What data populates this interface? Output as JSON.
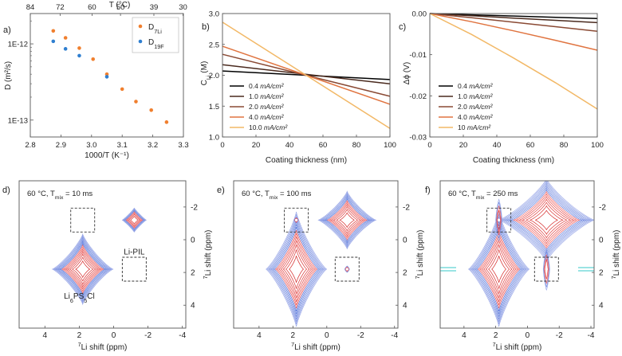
{
  "colors": {
    "li": "#f07f2e",
    "f": "#2f7fd0",
    "nmr_red": "#d11f1f",
    "nmr_blue": "#4e6fd8",
    "nmr_cyan": "#36c9c9",
    "box": "#333333"
  },
  "chart_data": [
    {
      "id": "a",
      "type": "scatter",
      "panel_label": "a)",
      "xlabel": "1000/T (K⁻¹)",
      "ylabel": "D (m²/s)",
      "top_xlabel": "T (°C)",
      "xlim": [
        2.8,
        3.3
      ],
      "ylim": [
        6e-14,
        2.5e-12
      ],
      "yscale": "log",
      "xticks": [
        2.8,
        2.9,
        3.0,
        3.1,
        3.2,
        3.3
      ],
      "xtick_labels": [
        "2.8",
        "2.9",
        "3.0",
        "3.1",
        "3.2",
        "3.3"
      ],
      "yticks": [
        1e-12,
        1e-13
      ],
      "ytick_labels": [
        "1E-12",
        "1E-13"
      ],
      "top_ticks": [
        84,
        72,
        60,
        50,
        39,
        30
      ],
      "top_tick_labels": [
        "84",
        "72",
        "60",
        "50",
        "39",
        "30"
      ],
      "legend_position": "top-right",
      "series": [
        {
          "name": "D7Li",
          "name_main": "D",
          "name_sub": "7Li",
          "color": "#f07f2e",
          "x": [
            2.875,
            2.915,
            2.96,
            3.005,
            3.05,
            3.1,
            3.145,
            3.195,
            3.245
          ],
          "y": [
            1.48e-12,
            1.2e-12,
            8.8e-13,
            6.3e-13,
            4e-13,
            2.55e-13,
            1.75e-13,
            1.35e-13,
            9.4e-14
          ]
        },
        {
          "name": "D19F",
          "name_main": "D",
          "name_sub": "19F",
          "color": "#2f7fd0",
          "x": [
            2.875,
            2.915,
            2.96,
            3.05
          ],
          "y": [
            1.08e-12,
            8.6e-13,
            7e-13,
            3.7e-13
          ]
        }
      ]
    },
    {
      "id": "b",
      "type": "line",
      "panel_label": "b)",
      "xlabel": "Coating thickness (nm)",
      "ylabel_main": "C",
      "ylabel_sub": "Li",
      "ylabel_unit": " (M)",
      "xlim": [
        0,
        100
      ],
      "ylim": [
        1.0,
        3.0
      ],
      "xticks": [
        0,
        20,
        40,
        60,
        80,
        100
      ],
      "yticks": [
        1.0,
        1.5,
        2.0,
        2.5,
        3.0
      ],
      "ytick_labels": [
        "1.0",
        "1.5",
        "2.0",
        "2.5",
        "3.0"
      ],
      "legend_position": "bottom-left",
      "series": [
        {
          "name": "0.4 mA/cm²",
          "color": "#000000",
          "x": [
            0,
            100
          ],
          "y": [
            2.07,
            1.93
          ]
        },
        {
          "name": "1.0 mA/cm²",
          "color": "#4a2a1e",
          "x": [
            0,
            100
          ],
          "y": [
            2.17,
            1.86
          ]
        },
        {
          "name": "2.0 mA/cm²",
          "color": "#8a4a34",
          "x": [
            0,
            100
          ],
          "y": [
            2.34,
            1.66
          ]
        },
        {
          "name": "4.0 mA/cm²",
          "color": "#e07440",
          "x": [
            0,
            100
          ],
          "y": [
            2.47,
            1.53
          ]
        },
        {
          "name": "10.0 mA/cm²",
          "color": "#f2b866",
          "x": [
            0,
            100
          ],
          "y": [
            2.86,
            1.14
          ]
        }
      ]
    },
    {
      "id": "c",
      "type": "line",
      "panel_label": "c)",
      "xlabel": "Coating thickness (nm)",
      "ylabel": "Δϕ (V)",
      "xlim": [
        0,
        100
      ],
      "ylim": [
        -0.03,
        0.0
      ],
      "xticks": [
        0,
        20,
        40,
        60,
        80,
        100
      ],
      "yticks": [
        0.0,
        -0.01,
        -0.02,
        -0.03
      ],
      "ytick_labels": [
        "0.00",
        "-0.01",
        "-0.02",
        "-0.03"
      ],
      "legend_position": "bottom-left",
      "series": [
        {
          "name": "0.4 mA/cm²",
          "color": "#000000",
          "x": [
            0,
            25,
            50,
            75,
            100
          ],
          "y": [
            0,
            -0.0003,
            -0.0006,
            -0.0009,
            -0.0012
          ]
        },
        {
          "name": "1.0 mA/cm²",
          "color": "#4a2a1e",
          "x": [
            0,
            25,
            50,
            75,
            100
          ],
          "y": [
            0,
            -0.00055,
            -0.0011,
            -0.00165,
            -0.0022
          ]
        },
        {
          "name": "2.0 mA/cm²",
          "color": "#8a4a34",
          "x": [
            0,
            25,
            50,
            75,
            100
          ],
          "y": [
            0,
            -0.001,
            -0.0021,
            -0.0032,
            -0.0043
          ]
        },
        {
          "name": "4.0 mA/cm²",
          "color": "#e07440",
          "x": [
            0,
            25,
            50,
            75,
            100
          ],
          "y": [
            0,
            -0.002,
            -0.0042,
            -0.0065,
            -0.0089
          ]
        },
        {
          "name": "10 mA/cm²",
          "color": "#f2b866",
          "x": [
            0,
            25,
            50,
            75,
            100
          ],
          "y": [
            0,
            -0.0051,
            -0.0108,
            -0.0168,
            -0.0232
          ]
        }
      ]
    },
    {
      "id": "d",
      "type": "contour",
      "panel_label": "d)",
      "annotation": "60 °C, T",
      "annotation_sub": "mix",
      "annotation_tail": " = 10 ms",
      "xlabel_sup": "7",
      "xlabel": "Li shift (ppm)",
      "ylabel_sup": "7",
      "ylabel": "Li shift (ppm)",
      "xlim": [
        5.5,
        -4.2
      ],
      "ylim": [
        -3.6,
        5.4
      ],
      "xticks": [
        4,
        2,
        0,
        -2,
        -4
      ],
      "yticks": [
        -2,
        0,
        2,
        4
      ],
      "tick_labels_x": [
        "4",
        "2",
        "0",
        "-2",
        "-4"
      ],
      "tick_labels_y": [
        "-2",
        "0",
        "2",
        "4"
      ],
      "labels": [
        {
          "text": "Li-PIL",
          "x": -1.2,
          "y": 0.9
        },
        {
          "text": "Li",
          "sub": "6",
          "text2": "PS",
          "sub2": "5",
          "text3": "Cl",
          "x": 2.0,
          "y": 3.6
        }
      ],
      "peaks": [
        {
          "x": 1.8,
          "y": 1.8,
          "size": "large"
        },
        {
          "x": -1.2,
          "y": -1.2,
          "size": "small"
        }
      ],
      "boxes": [
        {
          "x": 1.8,
          "y": -1.2
        },
        {
          "x": -1.2,
          "y": 1.8
        }
      ]
    },
    {
      "id": "e",
      "type": "contour",
      "panel_label": "e)",
      "annotation": "60 °C, T",
      "annotation_sub": "mix",
      "annotation_tail": " = 100 ms",
      "xlabel_sup": "7",
      "xlabel": "Li shift (ppm)",
      "ylabel_sup": "7",
      "ylabel": "Li shift (ppm)",
      "xlim": [
        5.5,
        -4.2
      ],
      "ylim": [
        -3.6,
        5.4
      ],
      "xticks": [
        4,
        2,
        0,
        -2,
        -4
      ],
      "yticks": [
        -2,
        0,
        2,
        4
      ],
      "tick_labels_x": [
        "4",
        "2",
        "0",
        "-2",
        "-4"
      ],
      "tick_labels_y": [
        "-2",
        "0",
        "2",
        "4"
      ],
      "peaks": [
        {
          "x": 1.8,
          "y": 1.8,
          "size": "large"
        },
        {
          "x": -1.2,
          "y": -1.2,
          "size": "medium"
        }
      ],
      "cross_peaks": [
        {
          "x": 1.8,
          "y": -1.2
        },
        {
          "x": -1.2,
          "y": 1.8
        }
      ],
      "boxes": [
        {
          "x": 1.8,
          "y": -1.2
        },
        {
          "x": -1.2,
          "y": 1.8
        }
      ]
    },
    {
      "id": "f",
      "type": "contour",
      "panel_label": "f)",
      "annotation": "60 °C, T",
      "annotation_sub": "mix",
      "annotation_tail": " = 250 ms",
      "xlabel_sup": "7",
      "xlabel": "Li shift (ppm)",
      "ylabel_sup": "7",
      "ylabel": "Li shift (ppm)",
      "xlim": [
        5.5,
        -4.2
      ],
      "ylim": [
        -3.6,
        5.4
      ],
      "xticks": [
        4,
        2,
        0,
        -2,
        -4
      ],
      "yticks": [
        -2,
        0,
        2,
        4
      ],
      "tick_labels_x": [
        "4",
        "2",
        "0",
        "-2",
        "-4"
      ],
      "tick_labels_y": [
        "-2",
        "0",
        "2",
        "4"
      ],
      "peaks": [
        {
          "x": 1.8,
          "y": 1.8,
          "size": "large"
        },
        {
          "x": -1.2,
          "y": -1.2,
          "size": "medium-wide"
        }
      ],
      "cross_peaks": [
        {
          "x": 1.8,
          "y": -1.2
        },
        {
          "x": -1.2,
          "y": 1.8
        }
      ],
      "boxes": [
        {
          "x": 1.8,
          "y": -1.2
        },
        {
          "x": -1.2,
          "y": 1.8
        }
      ]
    }
  ]
}
